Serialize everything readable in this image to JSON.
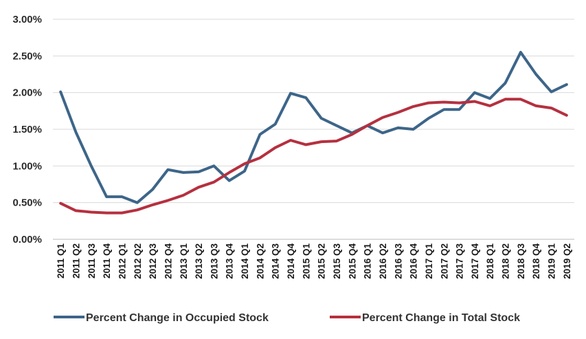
{
  "chart_data": {
    "type": "line",
    "categories": [
      "2011 Q1",
      "2011 Q2",
      "2011 Q3",
      "2011 Q4",
      "2012 Q1",
      "2012 Q2",
      "2012 Q3",
      "2012 Q4",
      "2013 Q1",
      "2013 Q2",
      "2013 Q3",
      "2013 Q4",
      "2014 Q1",
      "2014 Q2",
      "2014 Q3",
      "2014 Q4",
      "2015 Q1",
      "2015 Q2",
      "2015 Q3",
      "2015 Q4",
      "2016 Q1",
      "2016 Q2",
      "2016 Q3",
      "2016 Q4",
      "2017 Q1",
      "2017 Q2",
      "2017 Q3",
      "2017 Q4",
      "2018 Q1",
      "2018 Q2",
      "2018 Q3",
      "2018 Q4",
      "2019 Q1",
      "2019 Q2"
    ],
    "series": [
      {
        "name": "Percent Change in Occupied Stock",
        "color": "#3d6589",
        "values": [
          2.01,
          1.46,
          1.0,
          0.58,
          0.58,
          0.5,
          0.68,
          0.95,
          0.91,
          0.92,
          1.0,
          0.8,
          0.93,
          1.43,
          1.57,
          1.99,
          1.93,
          1.65,
          1.55,
          1.45,
          1.55,
          1.45,
          1.52,
          1.5,
          1.65,
          1.77,
          1.77,
          2.0,
          1.92,
          2.13,
          2.55,
          2.25,
          2.01,
          2.11
        ]
      },
      {
        "name": "Percent Change in Total Stock",
        "color": "#b5303f",
        "values": [
          0.49,
          0.39,
          0.37,
          0.36,
          0.36,
          0.4,
          0.47,
          0.53,
          0.6,
          0.71,
          0.78,
          0.91,
          1.03,
          1.11,
          1.25,
          1.35,
          1.29,
          1.33,
          1.34,
          1.43,
          1.55,
          1.66,
          1.73,
          1.81,
          1.86,
          1.87,
          1.86,
          1.88,
          1.82,
          1.91,
          1.91,
          1.82,
          1.79,
          1.69
        ]
      }
    ],
    "ylim": [
      0,
      3
    ],
    "yticks": [
      "0.00%",
      "0.50%",
      "1.00%",
      "1.50%",
      "2.00%",
      "2.50%",
      "3.00%"
    ],
    "ytick_values": [
      0,
      0.5,
      1,
      1.5,
      2,
      2.5,
      3
    ],
    "grid": "horizontal",
    "legend_position": "bottom"
  }
}
